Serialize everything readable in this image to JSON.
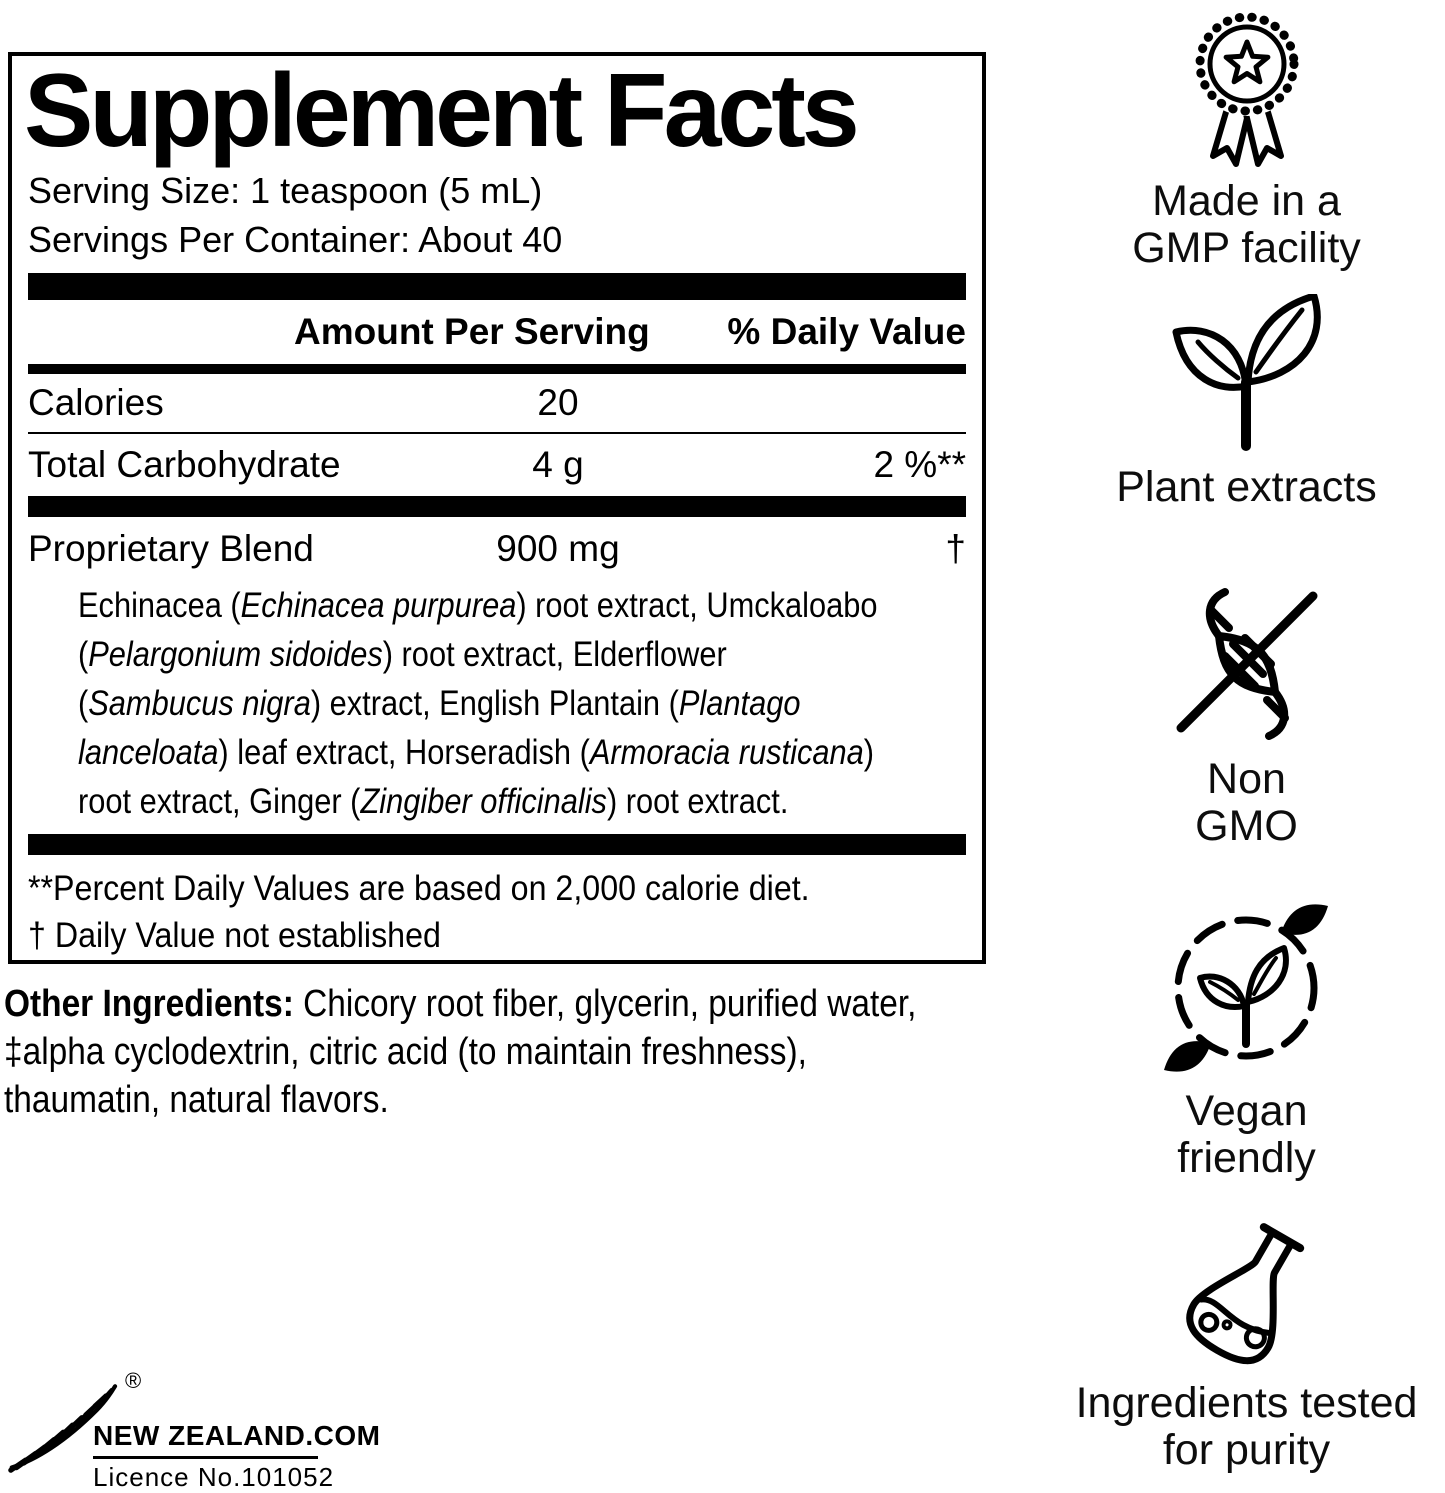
{
  "colors": {
    "ink": "#000000",
    "background": "#ffffff"
  },
  "panel": {
    "title": "Supplement Facts",
    "serving_size": "Serving Size: 1 teaspoon (5 mL)",
    "servings_per_container": "Servings Per Container: About 40",
    "col_amount": "Amount Per Serving",
    "col_dv": "% Daily Value",
    "rows": [
      {
        "name": "Calories",
        "amount": "20",
        "dv": ""
      },
      {
        "name": "Total Carbohydrate",
        "amount": "4 g",
        "dv": "2 %**"
      }
    ],
    "blend": {
      "name": "Proprietary Blend",
      "amount": "900 mg",
      "dv": "†",
      "lines": [
        [
          {
            "t": "Echinacea ("
          },
          {
            "t": "Echinacea purpurea",
            "i": true
          },
          {
            "t": ") root extract, Umckaloabo"
          }
        ],
        [
          {
            "t": "("
          },
          {
            "t": "Pelargonium sidoides",
            "i": true
          },
          {
            "t": ") root extract, Elderflower"
          }
        ],
        [
          {
            "t": "("
          },
          {
            "t": "Sambucus nigra",
            "i": true
          },
          {
            "t": ") extract, English Plantain ("
          },
          {
            "t": "Plantago",
            "i": true
          }
        ],
        [
          {
            "t": "lanceloata",
            "i": true
          },
          {
            "t": ") leaf extract, Horseradish ("
          },
          {
            "t": "Armoracia rusticana",
            "i": true
          },
          {
            "t": ")"
          }
        ],
        [
          {
            "t": "root extract, Ginger ("
          },
          {
            "t": "Zingiber officinalis",
            "i": true
          },
          {
            "t": ") root extract."
          }
        ]
      ]
    },
    "footnotes": [
      "**Percent Daily Values are based on 2,000 calorie diet.",
      "† Daily Value not established"
    ]
  },
  "other_ingredients": {
    "lines": [
      [
        {
          "t": "Other Ingredients:",
          "b": true
        },
        {
          "t": " Chicory root fiber, glycerin, purified water,"
        }
      ],
      [
        {
          "t": "‡alpha cyclodextrin, citric acid (to maintain freshness),"
        }
      ],
      [
        {
          "t": "thaumatin, natural flavors."
        }
      ]
    ]
  },
  "badges": [
    {
      "icon": "gmp-ribbon-icon",
      "lines": [
        "Made in a",
        "GMP facility"
      ]
    },
    {
      "icon": "plant-extracts-icon",
      "lines": [
        "Plant extracts"
      ]
    },
    {
      "icon": "non-gmo-icon",
      "lines": [
        "Non",
        "GMO"
      ]
    },
    {
      "icon": "vegan-friendly-icon",
      "lines": [
        "Vegan",
        "friendly"
      ]
    },
    {
      "icon": "purity-flask-icon",
      "lines": [
        "Ingredients tested",
        "for purity"
      ]
    }
  ],
  "footer_logo": {
    "trademark": "®",
    "brand": "NEW ZEALAND.COM",
    "licence": "Licence No.101052"
  }
}
